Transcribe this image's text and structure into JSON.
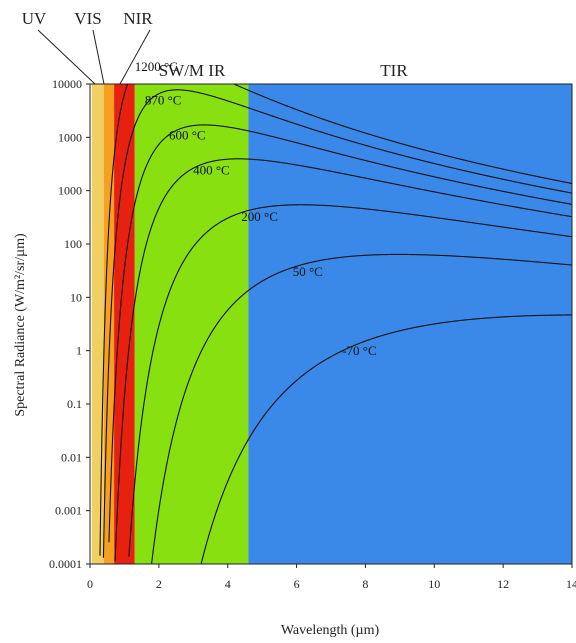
{
  "chart_data": {
    "type": "line",
    "xlabel": "Wavelength (µm)",
    "ylabel": "Spectral Radiance (W/m²/sr/µm)",
    "xlim": [
      0,
      14
    ],
    "ylim": [
      0.0001,
      10000
    ],
    "yscale": "log",
    "x_ticks": [
      "0",
      "2",
      "4",
      "6",
      "8",
      "10",
      "12",
      "14"
    ],
    "y_ticks": [
      "10000",
      "1000",
      "1000",
      "100",
      "10",
      "1",
      "0.1",
      "0.01",
      "0.001",
      "0.0001"
    ],
    "bands": [
      {
        "label": "UV",
        "x_start": 0.05,
        "x_end": 0.4,
        "color": "#f0d060"
      },
      {
        "label": "VIS",
        "x_start": 0.4,
        "x_end": 0.7,
        "color": "#f5a020"
      },
      {
        "label": "NIR",
        "x_start": 0.7,
        "x_end": 1.3,
        "color": "#e82010"
      },
      {
        "label": "SW/M IR",
        "x_start": 1.3,
        "x_end": 4.6,
        "color": "#88e010"
      },
      {
        "label": "TIR",
        "x_start": 4.6,
        "x_end": 14,
        "color": "#3a88e8"
      }
    ],
    "series": [
      {
        "name": "1200 °C",
        "temp_c": 1200
      },
      {
        "name": "870 °C",
        "temp_c": 870
      },
      {
        "name": "600 °C",
        "temp_c": 600
      },
      {
        "name": "400 °C",
        "temp_c": 400
      },
      {
        "name": "200 °C",
        "temp_c": 200
      },
      {
        "name": "50 °C",
        "temp_c": 50
      },
      {
        "name": "-70 °C",
        "temp_c": -70
      }
    ],
    "grid": false
  }
}
